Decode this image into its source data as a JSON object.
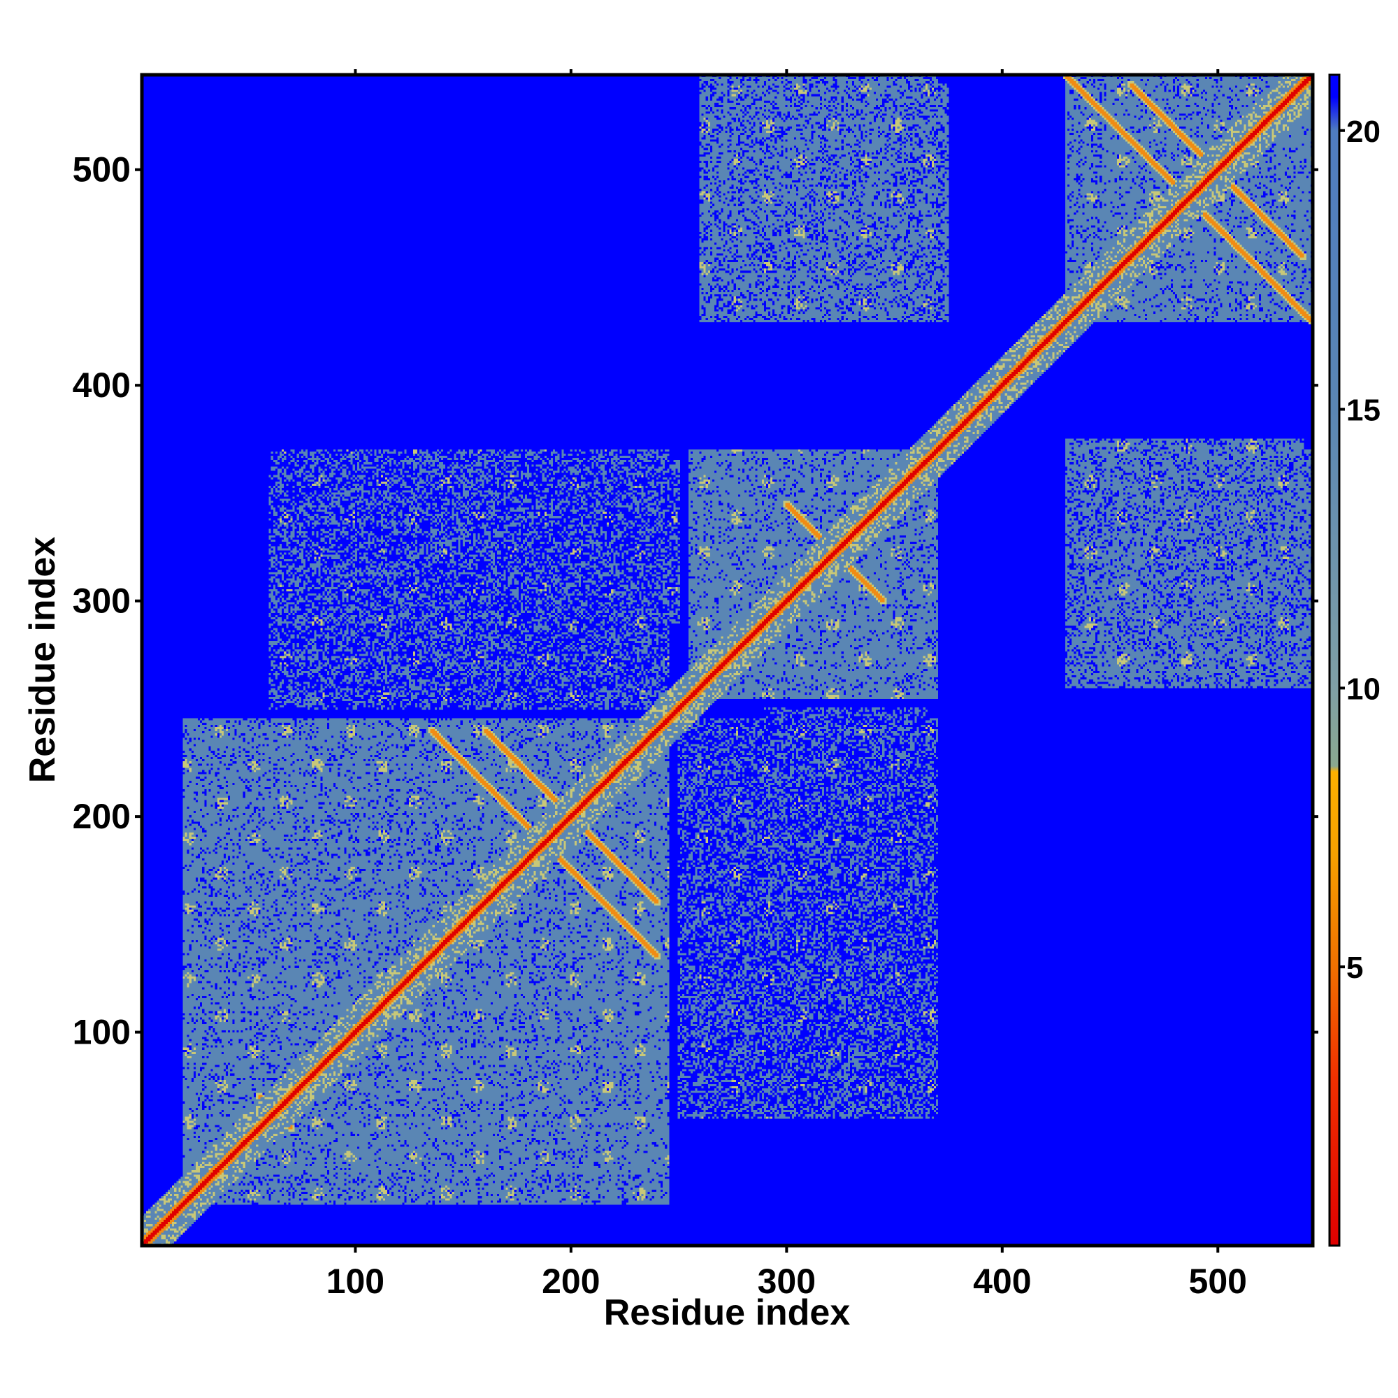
{
  "chart_data": {
    "type": "heatmap",
    "title": "",
    "xlabel": "Residue index",
    "ylabel": "Residue index",
    "xlim": [
      1,
      544
    ],
    "ylim": [
      1,
      544
    ],
    "x_ticks": [
      100,
      200,
      300,
      400,
      500
    ],
    "y_ticks": [
      100,
      200,
      300,
      400,
      500
    ],
    "colorbar": {
      "ticks": [
        5,
        10,
        15,
        20
      ],
      "range": [
        0,
        21
      ],
      "stops": [
        {
          "value": 0,
          "color": "#e00000"
        },
        {
          "value": 3,
          "color": "#f03000"
        },
        {
          "value": 5,
          "color": "#f07000"
        },
        {
          "value": 7,
          "color": "#f5a000"
        },
        {
          "value": 8.5,
          "color": "#fdb000"
        },
        {
          "value": 8.6,
          "color": "#8aa890"
        },
        {
          "value": 10,
          "color": "#7f9fa5"
        },
        {
          "value": 15,
          "color": "#5a86b4"
        },
        {
          "value": 20,
          "color": "#4f7cc0"
        },
        {
          "value": 20.6,
          "color": "#0000ff"
        },
        {
          "value": 21,
          "color": "#0000ff"
        }
      ]
    },
    "background_color": "#0000ff",
    "diagonal_color": "#e00000",
    "near_color": "#5a86b4",
    "contact_blocks": [
      {
        "x": [
          25,
          245
        ],
        "y": [
          20,
          245
        ],
        "density": "dense"
      },
      {
        "x": [
          60,
          250
        ],
        "y": [
          290,
          365
        ],
        "density": "sparse"
      },
      {
        "x": [
          255,
          370
        ],
        "y": [
          255,
          370
        ],
        "density": "dense"
      },
      {
        "x": [
          250,
          370
        ],
        "y": [
          60,
          245
        ],
        "density": "sparse"
      },
      {
        "x": [
          260,
          375
        ],
        "y": [
          430,
          540
        ],
        "density": "medium"
      },
      {
        "x": [
          430,
          544
        ],
        "y": [
          430,
          544
        ],
        "density": "dense"
      },
      {
        "x": [
          430,
          544
        ],
        "y": [
          260,
          370
        ],
        "density": "medium"
      }
    ],
    "contact_lines": [
      {
        "from": [
          135,
          240
        ],
        "to": [
          240,
          135
        ]
      },
      {
        "from": [
          160,
          240
        ],
        "to": [
          240,
          160
        ]
      },
      {
        "from": [
          55,
          70
        ],
        "to": [
          70,
          55
        ]
      },
      {
        "from": [
          430,
          544
        ],
        "to": [
          544,
          430
        ]
      },
      {
        "from": [
          300,
          345
        ],
        "to": [
          345,
          300
        ]
      },
      {
        "from": [
          460,
          540
        ],
        "to": [
          540,
          460
        ]
      }
    ]
  }
}
